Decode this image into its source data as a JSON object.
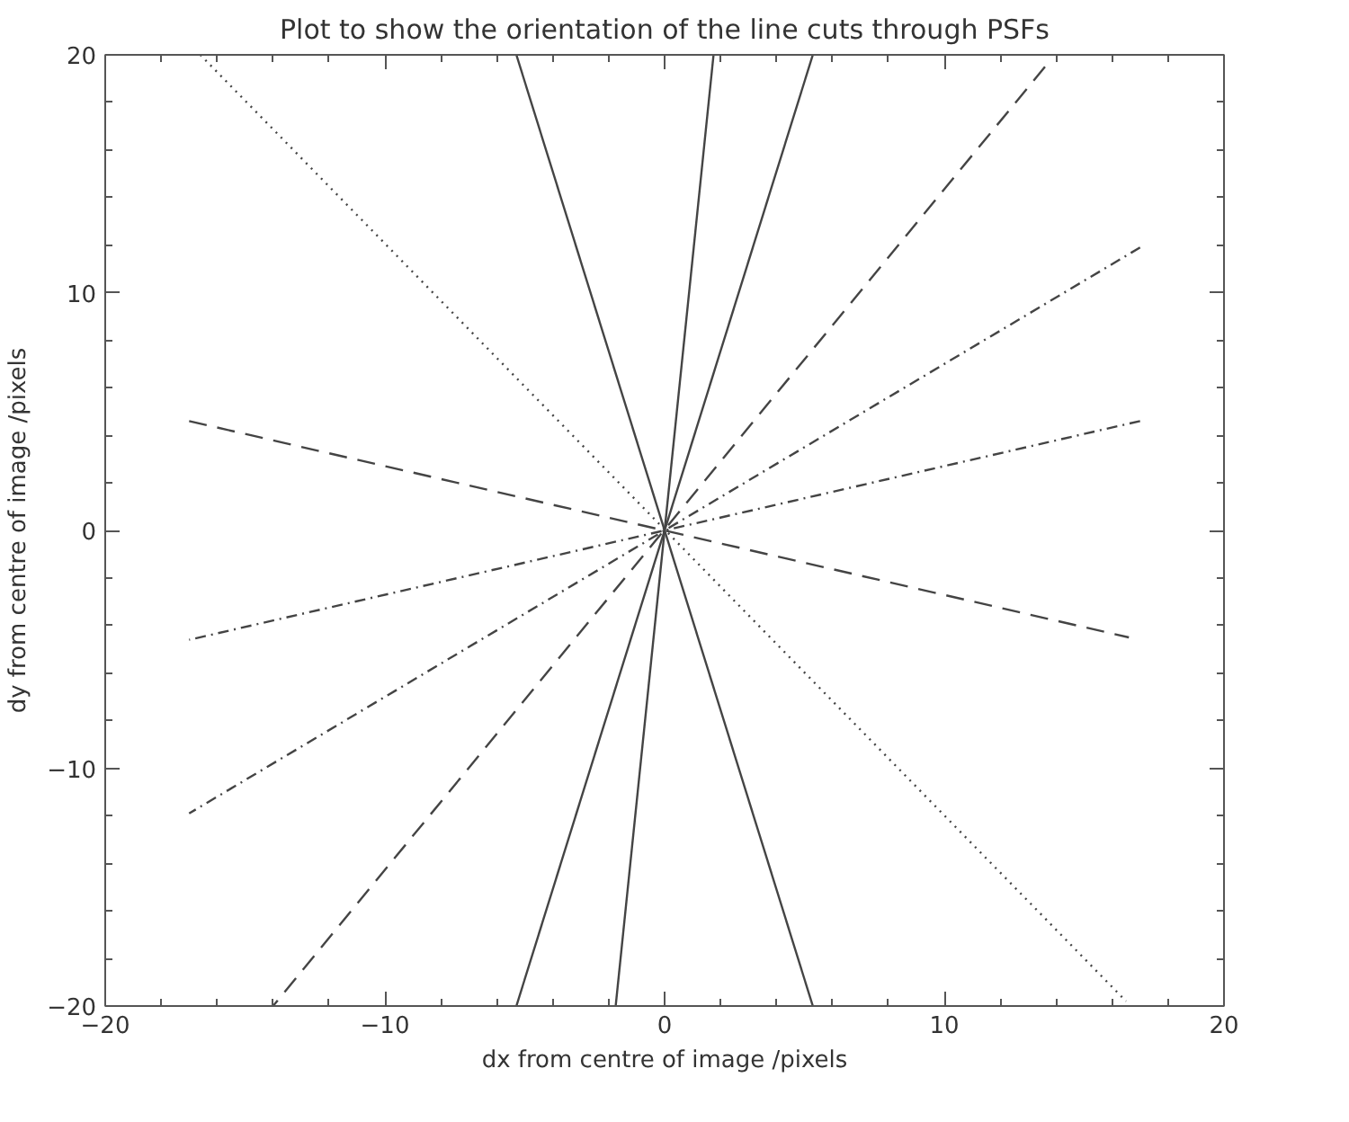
{
  "chart_data": {
    "type": "line",
    "title": "Plot to show the orientation of the line cuts through PSFs",
    "xlabel": "dx from centre of image /pixels",
    "ylabel": "dy from centre of image /pixels",
    "xlim": [
      -20,
      20
    ],
    "ylim": [
      -20,
      20
    ],
    "xticks": [
      -20,
      -10,
      0,
      10,
      20
    ],
    "yticks": [
      -20,
      -10,
      0,
      10,
      20
    ],
    "grid": false,
    "marker": "none",
    "series": [
      {
        "color": "#444444",
        "line_style": "solid",
        "x": [
          -5.3,
          5.3
        ],
        "values": [
          20,
          -20
        ]
      },
      {
        "color": "#444444",
        "line_style": "solid",
        "x": [
          1.75,
          -1.75
        ],
        "values": [
          20,
          -20
        ]
      },
      {
        "color": "#444444",
        "line_style": "solid",
        "x": [
          5.3,
          -5.3
        ],
        "values": [
          20,
          -20
        ]
      },
      {
        "color": "#444444",
        "line_style": "dotted",
        "x": [
          -16.6,
          16.5
        ],
        "values": [
          20,
          -19.8
        ]
      },
      {
        "color": "#444444",
        "line_style": "dashed",
        "x": [
          13.6,
          -14
        ],
        "values": [
          19.5,
          -20
        ]
      },
      {
        "color": "#444444",
        "line_style": "dashdot",
        "x": [
          17,
          -17
        ],
        "values": [
          11.9,
          -11.9
        ]
      },
      {
        "color": "#444444",
        "line_style": "dashdot",
        "x": [
          17,
          -17
        ],
        "values": [
          4.6,
          -4.6
        ]
      },
      {
        "color": "#444444",
        "line_style": "dashed",
        "x": [
          -17,
          16.6
        ],
        "values": [
          4.6,
          -4.5
        ]
      }
    ]
  }
}
